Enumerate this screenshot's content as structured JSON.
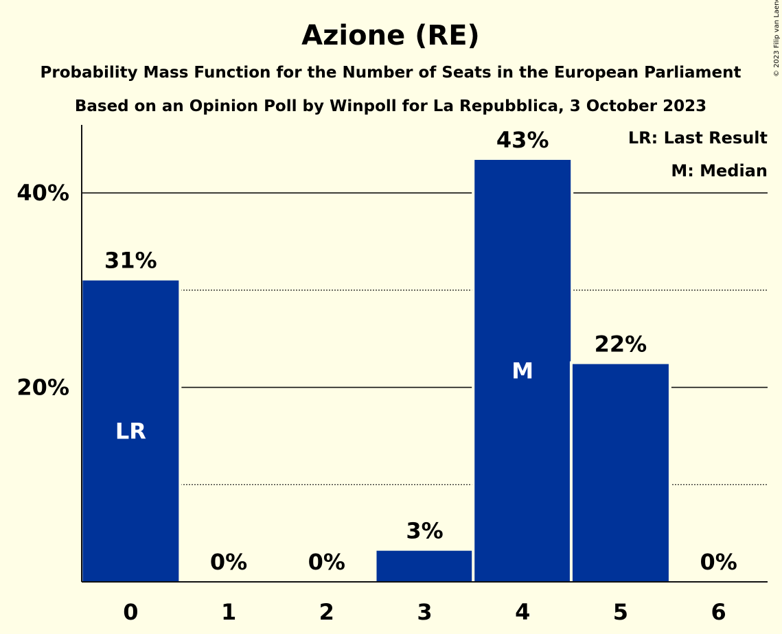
{
  "chart_data": {
    "type": "bar",
    "title": "Azione (RE)",
    "subtitle_lines": [
      "Probability Mass Function for the Number of Seats in the European Parliament",
      "Based on an Opinion Poll by Winpoll for La Repubblica, 3 October 2023"
    ],
    "copyright": "© 2023 Filip van Laenen",
    "categories": [
      "0",
      "1",
      "2",
      "3",
      "4",
      "5",
      "6"
    ],
    "values": [
      31,
      0,
      0,
      3.2,
      43.4,
      22.4,
      0
    ],
    "data_labels": [
      "31%",
      "0%",
      "0%",
      "3%",
      "43%",
      "22%",
      "0%"
    ],
    "bar_markers": [
      "LR",
      "",
      "",
      "",
      "M",
      "",
      ""
    ],
    "ylim": [
      0,
      47
    ],
    "yticks": [
      {
        "value": 20,
        "label": "20%"
      },
      {
        "value": 40,
        "label": "40%"
      }
    ],
    "minor_gridlines": [
      10,
      30
    ],
    "major_gridlines": [
      20,
      40
    ],
    "legend": {
      "placement": "top-right",
      "entries": [
        "LR: Last Result",
        "M: Median"
      ]
    },
    "colors": {
      "bar": "#003399",
      "background": "#FFFEE6",
      "text": "#111111",
      "marker_text": "#FFFFFF"
    }
  }
}
